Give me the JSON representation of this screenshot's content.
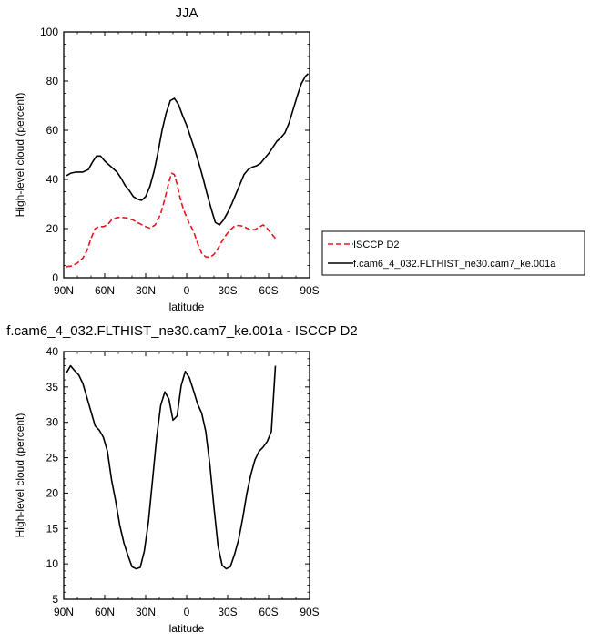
{
  "chart_data": [
    {
      "type": "line",
      "title": "JJA",
      "xlabel": "latitude",
      "ylabel": "High-level cloud (percent)",
      "xlim": [
        90,
        -90
      ],
      "ylim": [
        0,
        100
      ],
      "xticks": [
        90,
        60,
        30,
        0,
        -30,
        -60,
        -90
      ],
      "xtick_labels": [
        "90N",
        "60N",
        "30N",
        "0",
        "30S",
        "60S",
        "90S"
      ],
      "yticks": [
        0,
        20,
        40,
        60,
        80,
        100
      ],
      "ytick_labels": [
        "0",
        "20",
        "40",
        "60",
        "80",
        "100"
      ],
      "legend_position": "right",
      "series": [
        {
          "name": "ISCCP D2",
          "color": "#e8141e",
          "dash": "dashed",
          "x": [
            88,
            84,
            80,
            76,
            73,
            70,
            67,
            64,
            61,
            58,
            55,
            51,
            47,
            43,
            39,
            35,
            31,
            27,
            23,
            19,
            16,
            13,
            11,
            9,
            7,
            5,
            3,
            1,
            -2,
            -5,
            -8,
            -11,
            -14,
            -17,
            -20,
            -23,
            -26,
            -29,
            -32,
            -35,
            -38,
            -41,
            -44,
            -47,
            -50,
            -53,
            -56,
            -59,
            -62,
            -65
          ],
          "y": [
            4.5,
            4.8,
            6,
            8,
            11,
            16,
            20,
            20.8,
            20.8,
            21.5,
            23.5,
            24.5,
            24.5,
            24.3,
            23.4,
            22.2,
            21,
            20.2,
            21.5,
            26,
            32,
            39,
            42.5,
            42,
            38,
            33,
            29,
            26,
            22,
            19,
            14,
            10,
            8.5,
            8.3,
            9.5,
            12,
            15,
            17.5,
            19.5,
            21,
            21.3,
            21,
            20.2,
            19.5,
            19.6,
            20.5,
            21.5,
            20,
            18,
            16
          ]
        },
        {
          "name": "f.cam6_4_032.FLTHIST_ne30.cam7_ke.001a",
          "color": "#000000",
          "dash": "solid",
          "x": [
            88,
            85,
            81,
            76,
            72,
            69,
            66,
            63,
            60,
            57,
            54,
            51,
            48,
            45,
            42,
            39,
            36,
            33,
            30,
            27,
            24,
            21,
            18,
            15,
            12,
            9,
            6,
            3,
            0,
            -3,
            -6,
            -9,
            -12,
            -15,
            -18,
            -21,
            -24,
            -27,
            -30,
            -33,
            -36,
            -39,
            -42,
            -45,
            -48,
            -51,
            -54,
            -57,
            -60,
            -63,
            -66,
            -69,
            -72,
            -75,
            -78,
            -81,
            -84,
            -87,
            -89
          ],
          "y": [
            41.5,
            42.5,
            43,
            43,
            44,
            47,
            49.5,
            49.5,
            47.5,
            46,
            44.5,
            43,
            40.5,
            37.5,
            35.5,
            33,
            32,
            31.5,
            33,
            37,
            43,
            51,
            60,
            67,
            72,
            73,
            70.5,
            66,
            62,
            57,
            52,
            46.5,
            40.5,
            34,
            28,
            22.5,
            21.5,
            23.5,
            26.5,
            30,
            34,
            38,
            42,
            44,
            45,
            45.5,
            46.5,
            48.5,
            50.5,
            53,
            55.5,
            57,
            59,
            63,
            68.5,
            74,
            79,
            82,
            83
          ]
        }
      ]
    },
    {
      "type": "line",
      "title": "f.cam6_4_032.FLTHIST_ne30.cam7_ke.001a - ISCCP D2",
      "xlabel": "latitude",
      "ylabel": "High-level cloud (percent)",
      "xlim": [
        90,
        -90
      ],
      "ylim": [
        5,
        40
      ],
      "xticks": [
        90,
        60,
        30,
        0,
        -30,
        -60,
        -90
      ],
      "xtick_labels": [
        "90N",
        "60N",
        "30N",
        "0",
        "30S",
        "60S",
        "90S"
      ],
      "yticks": [
        5,
        10,
        15,
        20,
        25,
        30,
        35,
        40
      ],
      "ytick_labels": [
        "5",
        "10",
        "15",
        "20",
        "25",
        "30",
        "35",
        "40"
      ],
      "series": [
        {
          "color": "#000000",
          "dash": "solid",
          "x": [
            88,
            85,
            82,
            79,
            76,
            73,
            70,
            67,
            64,
            61,
            58,
            55,
            52,
            49,
            46,
            43,
            40,
            37,
            34,
            31,
            28,
            25,
            22,
            19,
            16,
            13,
            10,
            7,
            4,
            1,
            -2,
            -5,
            -8,
            -11,
            -14,
            -17,
            -20,
            -23,
            -26,
            -29,
            -32,
            -35,
            -38,
            -41,
            -44,
            -47,
            -50,
            -53,
            -56,
            -59,
            -62,
            -65
          ],
          "y": [
            37,
            38,
            37.3,
            36.7,
            35.5,
            33.5,
            31.5,
            29.5,
            28.9,
            27.9,
            25.9,
            21.9,
            18.9,
            15.5,
            13,
            11.2,
            9.6,
            9.3,
            9.5,
            11.8,
            15.9,
            21.8,
            27.8,
            32.4,
            34.3,
            33.3,
            30.3,
            30.9,
            35.2,
            37.2,
            36.3,
            34.5,
            32.6,
            31.3,
            28.7,
            24,
            18,
            12.5,
            9.8,
            9.3,
            9.6,
            11.3,
            13.4,
            16.4,
            19.9,
            22.6,
            24.7,
            25.9,
            26.5,
            27.3,
            28.7,
            38
          ]
        }
      ]
    }
  ]
}
